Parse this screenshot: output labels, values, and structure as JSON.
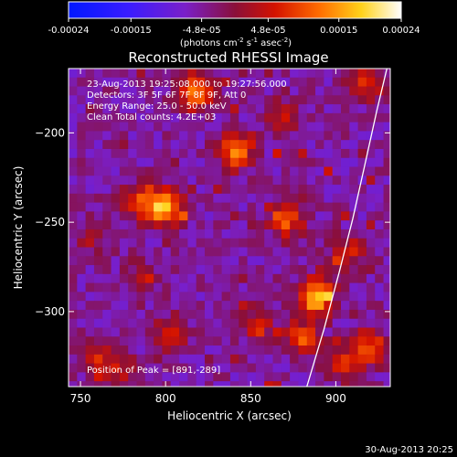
{
  "chart_data": {
    "type": "heatmap",
    "title": "Reconstructed RHESSI Image",
    "xlabel": "Heliocentric X (arcsec)",
    "ylabel": "Heliocentric Y (arcsec)",
    "xlim": [
      743,
      932
    ],
    "ylim": [
      -342,
      -164
    ],
    "xticks": [
      750,
      800,
      850,
      900
    ],
    "yticks": [
      -200,
      -250,
      -300
    ],
    "colorbar": {
      "unit_label": "(photons cm",
      "unit_sup1": "-2",
      "unit_mid": " s",
      "unit_sup2": "-1",
      "unit_mid2": " asec",
      "unit_sup3": "-2",
      "unit_end": ")",
      "range": [
        -0.00024,
        0.00024
      ],
      "ticks": [
        {
          "value": -0.00024,
          "label": "-0.00024"
        },
        {
          "value": -0.00015,
          "label": "-0.00015"
        },
        {
          "value": -4.8e-05,
          "label": "-4.8e-05"
        },
        {
          "value": 4.8e-05,
          "label": "4.8e-05"
        },
        {
          "value": 0.00015,
          "label": "0.00015"
        },
        {
          "value": 0.00024,
          "label": "0.00024"
        }
      ]
    },
    "annotations": [
      "23-Aug-2013 19:25:08.000 to 19:27:56.000",
      "Detectors: 3F 5F 6F 7F 8F 9F, Att 0",
      "Energy Range: 25.0 - 50.0 keV",
      "Clean    Total counts: 4.2E+03"
    ],
    "peak_label": "Position of Peak = [891,-289]",
    "peak": [
      891,
      -289
    ],
    "limb_curve": [
      [
        883,
        -342
      ],
      [
        893,
        -310
      ],
      [
        902,
        -278
      ],
      [
        910,
        -248
      ],
      [
        917,
        -218
      ],
      [
        924,
        -188
      ],
      [
        930,
        -164
      ]
    ],
    "sources": [
      {
        "x": 818,
        "y": -177,
        "value": 0.0002
      },
      {
        "x": 800,
        "y": -242,
        "value": 0.00022
      },
      {
        "x": 785,
        "y": -238,
        "value": 0.00012
      },
      {
        "x": 842,
        "y": -210,
        "value": 0.00018
      },
      {
        "x": 871,
        "y": -248,
        "value": 0.00016
      },
      {
        "x": 888,
        "y": -292,
        "value": 0.00024
      },
      {
        "x": 880,
        "y": -315,
        "value": 0.00014
      },
      {
        "x": 854,
        "y": -307,
        "value": 0.0001
      },
      {
        "x": 803,
        "y": -312,
        "value": 9e-05
      },
      {
        "x": 772,
        "y": -332,
        "value": 0.0001
      },
      {
        "x": 760,
        "y": -325,
        "value": 8e-05
      },
      {
        "x": 907,
        "y": -267,
        "value": 0.00011
      },
      {
        "x": 920,
        "y": -320,
        "value": 0.00015
      },
      {
        "x": 868,
        "y": -192,
        "value": 9e-05
      },
      {
        "x": 757,
        "y": -258,
        "value": 6e-05
      },
      {
        "x": 785,
        "y": -282,
        "value": 7e-05
      },
      {
        "x": 918,
        "y": -172,
        "value": 0.00012
      },
      {
        "x": 905,
        "y": -330,
        "value": 0.0001
      }
    ]
  },
  "footer": {
    "timestamp": "30-Aug-2013 20:25"
  }
}
